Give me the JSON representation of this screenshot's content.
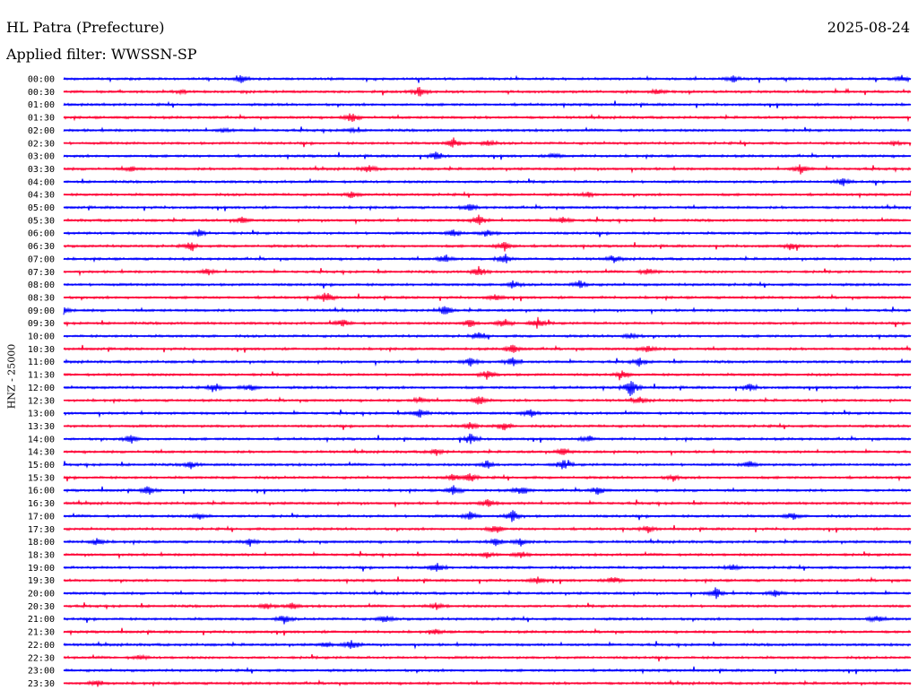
{
  "header": {
    "station": "HL Patra (Prefecture)",
    "date": "2025-08-24",
    "filter": "Applied filter: WWSSN-SP"
  },
  "chart_data": {
    "type": "line",
    "ylabel": "HNZ - 25000",
    "colors": {
      "even_row": "#0000ff",
      "odd_row": "#ff0033"
    },
    "rows": [
      {
        "label": "00:00",
        "events": [
          [
            0.21,
            0.6
          ],
          [
            0.79,
            0.5
          ],
          [
            0.99,
            0.6
          ]
        ]
      },
      {
        "label": "00:30",
        "events": [
          [
            0.14,
            0.3
          ],
          [
            0.42,
            0.8
          ],
          [
            0.7,
            0.4
          ]
        ]
      },
      {
        "label": "01:00",
        "events": []
      },
      {
        "label": "01:30",
        "events": [
          [
            0.34,
            0.8
          ]
        ]
      },
      {
        "label": "02:00",
        "events": [
          [
            0.19,
            0.3
          ],
          [
            0.34,
            0.3
          ]
        ]
      },
      {
        "label": "02:30",
        "events": [
          [
            0.46,
            0.8
          ],
          [
            0.5,
            0.6
          ],
          [
            0.98,
            0.4
          ]
        ]
      },
      {
        "label": "03:00",
        "events": [
          [
            0.44,
            0.7
          ],
          [
            0.58,
            0.5
          ]
        ]
      },
      {
        "label": "03:30",
        "events": [
          [
            0.08,
            0.4
          ],
          [
            0.36,
            0.6
          ],
          [
            0.87,
            0.8
          ]
        ]
      },
      {
        "label": "04:00",
        "events": [
          [
            0.92,
            0.6
          ]
        ]
      },
      {
        "label": "04:30",
        "events": [
          [
            0.34,
            0.5
          ],
          [
            0.62,
            0.4
          ]
        ]
      },
      {
        "label": "05:00",
        "events": [
          [
            0.48,
            0.6
          ]
        ]
      },
      {
        "label": "05:30",
        "events": [
          [
            0.21,
            0.5
          ],
          [
            0.49,
            0.8
          ],
          [
            0.59,
            0.6
          ]
        ]
      },
      {
        "label": "06:00",
        "events": [
          [
            0.16,
            0.6
          ],
          [
            0.46,
            0.7
          ],
          [
            0.5,
            0.6
          ]
        ]
      },
      {
        "label": "06:30",
        "events": [
          [
            0.15,
            0.6
          ],
          [
            0.52,
            0.9
          ],
          [
            0.86,
            0.5
          ]
        ]
      },
      {
        "label": "07:00",
        "events": [
          [
            0.45,
            0.8
          ],
          [
            0.52,
            0.9
          ],
          [
            0.65,
            0.5
          ]
        ]
      },
      {
        "label": "07:30",
        "events": [
          [
            0.17,
            0.5
          ],
          [
            0.49,
            0.8
          ],
          [
            0.69,
            0.6
          ]
        ]
      },
      {
        "label": "08:00",
        "events": [
          [
            0.53,
            0.6
          ],
          [
            0.61,
            0.7
          ]
        ]
      },
      {
        "label": "08:30",
        "events": [
          [
            0.31,
            0.9
          ],
          [
            0.51,
            0.5
          ]
        ]
      },
      {
        "label": "09:00",
        "events": [
          [
            0.0,
            0.6
          ],
          [
            0.45,
            0.8
          ]
        ]
      },
      {
        "label": "09:30",
        "events": [
          [
            0.33,
            0.6
          ],
          [
            0.48,
            0.7
          ],
          [
            0.52,
            0.8
          ],
          [
            0.56,
            0.9
          ]
        ]
      },
      {
        "label": "10:00",
        "events": [
          [
            0.49,
            0.6
          ],
          [
            0.67,
            0.6
          ]
        ]
      },
      {
        "label": "10:30",
        "events": [
          [
            0.53,
            0.8
          ],
          [
            0.69,
            0.6
          ]
        ]
      },
      {
        "label": "11:00",
        "events": [
          [
            0.48,
            0.7
          ],
          [
            0.53,
            0.8
          ],
          [
            0.68,
            0.7
          ]
        ]
      },
      {
        "label": "11:30",
        "events": [
          [
            0.5,
            0.8
          ],
          [
            0.66,
            0.6
          ]
        ]
      },
      {
        "label": "12:00",
        "events": [
          [
            0.18,
            0.7
          ],
          [
            0.22,
            0.6
          ],
          [
            0.67,
            1.5
          ],
          [
            0.81,
            0.6
          ]
        ]
      },
      {
        "label": "12:30",
        "events": [
          [
            0.42,
            0.5
          ],
          [
            0.49,
            0.9
          ],
          [
            0.68,
            0.5
          ]
        ]
      },
      {
        "label": "13:00",
        "events": [
          [
            0.42,
            0.8
          ],
          [
            0.55,
            0.8
          ]
        ]
      },
      {
        "label": "13:30",
        "events": [
          [
            0.48,
            0.6
          ],
          [
            0.52,
            0.7
          ]
        ]
      },
      {
        "label": "14:00",
        "events": [
          [
            0.08,
            0.7
          ],
          [
            0.48,
            0.9
          ],
          [
            0.62,
            0.5
          ]
        ]
      },
      {
        "label": "14:30",
        "events": [
          [
            0.44,
            0.5
          ],
          [
            0.59,
            0.6
          ]
        ]
      },
      {
        "label": "15:00",
        "events": [
          [
            0.15,
            0.6
          ],
          [
            0.5,
            0.7
          ],
          [
            0.59,
            0.9
          ],
          [
            0.81,
            0.6
          ]
        ]
      },
      {
        "label": "15:30",
        "events": [
          [
            0.46,
            0.6
          ],
          [
            0.48,
            0.7
          ],
          [
            0.72,
            0.5
          ]
        ]
      },
      {
        "label": "16:00",
        "events": [
          [
            0.1,
            0.7
          ],
          [
            0.46,
            0.8
          ],
          [
            0.54,
            0.9
          ],
          [
            0.63,
            0.7
          ]
        ]
      },
      {
        "label": "16:30",
        "events": [
          [
            0.5,
            0.7
          ]
        ]
      },
      {
        "label": "17:00",
        "events": [
          [
            0.16,
            0.5
          ],
          [
            0.48,
            0.7
          ],
          [
            0.53,
            1.0
          ],
          [
            0.86,
            0.6
          ]
        ]
      },
      {
        "label": "17:30",
        "events": [
          [
            0.51,
            0.7
          ],
          [
            0.69,
            0.5
          ]
        ]
      },
      {
        "label": "18:00",
        "events": [
          [
            0.04,
            0.6
          ],
          [
            0.22,
            0.6
          ],
          [
            0.51,
            0.7
          ],
          [
            0.54,
            0.6
          ]
        ]
      },
      {
        "label": "18:30",
        "events": [
          [
            0.5,
            0.5
          ],
          [
            0.54,
            0.5
          ]
        ]
      },
      {
        "label": "19:00",
        "events": [
          [
            0.44,
            0.9
          ],
          [
            0.79,
            0.5
          ]
        ]
      },
      {
        "label": "19:30",
        "events": [
          [
            0.56,
            0.6
          ],
          [
            0.65,
            0.7
          ]
        ]
      },
      {
        "label": "20:00",
        "events": [
          [
            0.77,
            0.9
          ],
          [
            0.84,
            0.6
          ]
        ]
      },
      {
        "label": "20:30",
        "events": [
          [
            0.24,
            0.6
          ],
          [
            0.27,
            0.5
          ],
          [
            0.44,
            0.6
          ]
        ]
      },
      {
        "label": "21:00",
        "events": [
          [
            0.26,
            0.7
          ],
          [
            0.38,
            0.7
          ],
          [
            0.96,
            0.6
          ]
        ]
      },
      {
        "label": "21:30",
        "events": [
          [
            0.44,
            0.4
          ]
        ]
      },
      {
        "label": "22:00",
        "events": [
          [
            0.34,
            0.8
          ],
          [
            0.31,
            0.4
          ]
        ]
      },
      {
        "label": "22:30",
        "events": [
          [
            0.09,
            0.4
          ]
        ]
      },
      {
        "label": "23:00",
        "events": []
      },
      {
        "label": "23:30",
        "events": [
          [
            0.04,
            0.5
          ]
        ]
      }
    ]
  }
}
